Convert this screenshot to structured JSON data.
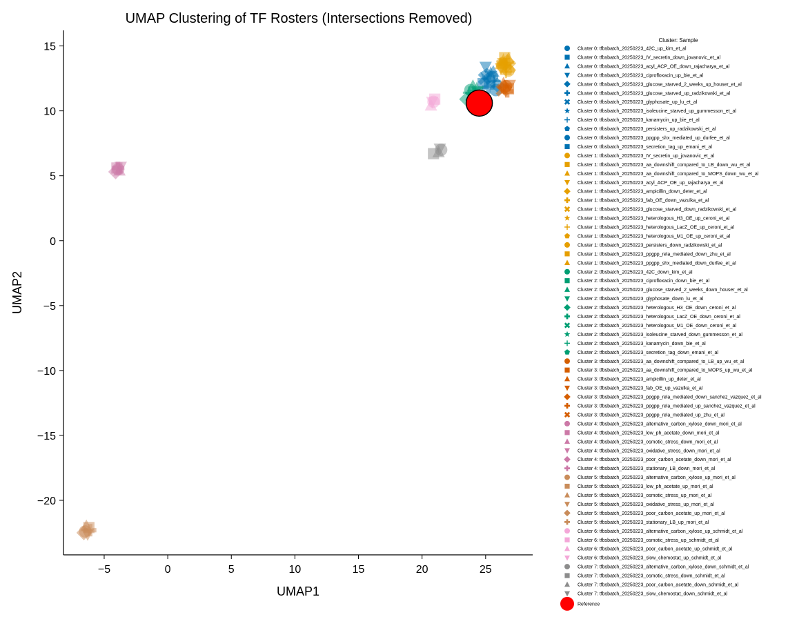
{
  "chart_data": {
    "type": "scatter",
    "title": "UMAP Clustering of TF Rosters (Intersections Removed)",
    "xlabel": "UMAP1",
    "ylabel": "UMAP2",
    "xlim": [
      -8.2,
      28.7
    ],
    "ylim": [
      -24.2,
      16.2
    ],
    "xticks": [
      -5,
      0,
      5,
      10,
      15,
      20,
      25
    ],
    "yticks": [
      15,
      10,
      5,
      0,
      -5,
      -10,
      -15,
      -20
    ],
    "xtick_labels": [
      "−5",
      "0",
      "5",
      "10",
      "15",
      "20",
      "25"
    ],
    "ytick_labels": [
      "15",
      "10",
      "5",
      "0",
      "−5",
      "−10",
      "−15",
      "−20"
    ],
    "grid": false,
    "legend_position": "right",
    "legend_title": "Cluster: Sample",
    "cluster_colors": [
      "#0072b2",
      "#e69f00",
      "#009e73",
      "#d55e00",
      "#cc79a7",
      "#c98c5a",
      "#f4a7d8",
      "#8c8c8c"
    ],
    "series": [
      {
        "label": "Cluster 0: tfbsbatch_20250223_42C_up_kim_et_al",
        "cluster": 0,
        "marker": "circle",
        "x": 25.5,
        "y": 12.6
      },
      {
        "label": "Cluster 0: tfbsbatch_20250223_IV_secretin_down_jovanovic_et_al",
        "cluster": 0,
        "marker": "square",
        "x": 25.3,
        "y": 12.2
      },
      {
        "label": "Cluster 0: tfbsbatch_20250223_acyl_ACP_OE_down_rajacharya_et_al",
        "cluster": 0,
        "marker": "triangle-up",
        "x": 25.6,
        "y": 13.0
      },
      {
        "label": "Cluster 0: tfbsbatch_20250223_ciprofloxacin_up_bie_et_al",
        "cluster": 0,
        "marker": "triangle-down",
        "x": 25.0,
        "y": 13.4
      },
      {
        "label": "Cluster 0: tfbsbatch_20250223_glucose_starved_2_weeks_up_houser_et_al",
        "cluster": 0,
        "marker": "diamond",
        "x": 25.9,
        "y": 12.0
      },
      {
        "label": "Cluster 0: tfbsbatch_20250223_glucose_starved_up_radzikowski_et_al",
        "cluster": 0,
        "marker": "plus",
        "x": 25.2,
        "y": 11.8
      },
      {
        "label": "Cluster 0: tfbsbatch_20250223_glyphosate_up_lu_et_al",
        "cluster": 0,
        "marker": "x",
        "x": 24.9,
        "y": 12.5
      },
      {
        "label": "Cluster 0: tfbsbatch_20250223_isoleucine_starved_up_gummesson_et_al",
        "cluster": 0,
        "marker": "star",
        "x": 25.4,
        "y": 12.9
      },
      {
        "label": "Cluster 0: tfbsbatch_20250223_kanamycin_up_bie_et_al",
        "cluster": 0,
        "marker": "thin-plus",
        "x": 25.7,
        "y": 12.3
      },
      {
        "label": "Cluster 0: tfbsbatch_20250223_persisters_up_radzikowski_et_al",
        "cluster": 0,
        "marker": "pentagon",
        "x": 25.1,
        "y": 12.8
      },
      {
        "label": "Cluster 0: tfbsbatch_20250223_ppgpp_shx_mediated_up_durfee_et_al",
        "cluster": 0,
        "marker": "circle",
        "x": 25.8,
        "y": 11.6
      },
      {
        "label": "Cluster 0: tfbsbatch_20250223_secretion_tag_up_emani_et_al",
        "cluster": 0,
        "marker": "square",
        "x": 24.8,
        "y": 12.1
      },
      {
        "label": "Cluster 1: tfbsbatch_20250223_IV_secretin_up_jovanovic_et_al",
        "cluster": 1,
        "marker": "circle",
        "x": 26.3,
        "y": 13.5
      },
      {
        "label": "Cluster 1: tfbsbatch_20250223_aa_downshift_compared_to_LB_down_wu_et_al",
        "cluster": 1,
        "marker": "square",
        "x": 26.6,
        "y": 13.2
      },
      {
        "label": "Cluster 1: tfbsbatch_20250223_aa_downshift_compared_to_MOPS_down_wu_et_al",
        "cluster": 1,
        "marker": "triangle-up",
        "x": 26.8,
        "y": 14.0
      },
      {
        "label": "Cluster 1: tfbsbatch_20250223_acyl_ACP_OE_up_rajacharya_et_al",
        "cluster": 1,
        "marker": "triangle-down",
        "x": 26.2,
        "y": 13.3
      },
      {
        "label": "Cluster 1: tfbsbatch_20250223_ampicillin_down_deter_et_al",
        "cluster": 1,
        "marker": "diamond",
        "x": 26.7,
        "y": 13.8
      },
      {
        "label": "Cluster 1: tfbsbatch_20250223_fab_OE_down_vazulka_et_al",
        "cluster": 1,
        "marker": "plus",
        "x": 26.5,
        "y": 13.6
      },
      {
        "label": "Cluster 1: tfbsbatch_20250223_glucose_starved_down_radzikowski_et_al",
        "cluster": 1,
        "marker": "x",
        "x": 26.9,
        "y": 13.4
      },
      {
        "label": "Cluster 1: tfbsbatch_20250223_heterologous_H3_OE_up_ceroni_et_al",
        "cluster": 1,
        "marker": "star",
        "x": 26.4,
        "y": 13.9
      },
      {
        "label": "Cluster 1: tfbsbatch_20250223_heterologous_LacZ_OE_up_ceroni_et_al",
        "cluster": 1,
        "marker": "thin-plus",
        "x": 26.6,
        "y": 13.0
      },
      {
        "label": "Cluster 1: tfbsbatch_20250223_heterologous_M1_OE_up_ceroni_et_al",
        "cluster": 1,
        "marker": "pentagon",
        "x": 26.3,
        "y": 13.7
      },
      {
        "label": "Cluster 1: tfbsbatch_20250223_persisters_down_radzikowski_et_al",
        "cluster": 1,
        "marker": "circle",
        "x": 26.8,
        "y": 13.1
      },
      {
        "label": "Cluster 1: tfbsbatch_20250223_ppgpp_rela_mediated_down_zhu_et_al",
        "cluster": 1,
        "marker": "square",
        "x": 26.5,
        "y": 14.1
      },
      {
        "label": "Cluster 1: tfbsbatch_20250223_ppgpp_shx_mediated_down_durfee_et_al",
        "cluster": 1,
        "marker": "triangle-up",
        "x": 26.2,
        "y": 13.6
      },
      {
        "label": "Cluster 2: tfbsbatch_20250223_42C_down_kim_et_al",
        "cluster": 2,
        "marker": "circle",
        "x": 23.8,
        "y": 11.6
      },
      {
        "label": "Cluster 2: tfbsbatch_20250223_ciprofloxacin_down_bie_et_al",
        "cluster": 2,
        "marker": "square",
        "x": 24.2,
        "y": 11.2
      },
      {
        "label": "Cluster 2: tfbsbatch_20250223_glucose_starved_2_weeks_down_houser_et_al",
        "cluster": 2,
        "marker": "triangle-up",
        "x": 24.0,
        "y": 11.9
      },
      {
        "label": "Cluster 2: tfbsbatch_20250223_glyphosate_down_lu_et_al",
        "cluster": 2,
        "marker": "triangle-down",
        "x": 24.4,
        "y": 11.5
      },
      {
        "label": "Cluster 2: tfbsbatch_20250223_heterologous_H3_OE_down_ceroni_et_al",
        "cluster": 2,
        "marker": "diamond",
        "x": 23.5,
        "y": 10.9
      },
      {
        "label": "Cluster 2: tfbsbatch_20250223_heterologous_LacZ_OE_down_ceroni_et_al",
        "cluster": 2,
        "marker": "plus",
        "x": 24.1,
        "y": 11.3
      },
      {
        "label": "Cluster 2: tfbsbatch_20250223_heterologous_M1_OE_down_ceroni_et_al",
        "cluster": 2,
        "marker": "x",
        "x": 23.9,
        "y": 11.1
      },
      {
        "label": "Cluster 2: tfbsbatch_20250223_isoleucine_starved_down_gummesson_et_al",
        "cluster": 2,
        "marker": "star",
        "x": 24.3,
        "y": 11.7
      },
      {
        "label": "Cluster 2: tfbsbatch_20250223_kanamycin_down_bie_et_al",
        "cluster": 2,
        "marker": "thin-plus",
        "x": 23.7,
        "y": 11.4
      },
      {
        "label": "Cluster 2: tfbsbatch_20250223_secretion_tag_down_emani_et_al",
        "cluster": 2,
        "marker": "pentagon",
        "x": 24.0,
        "y": 10.8
      },
      {
        "label": "Cluster 3: tfbsbatch_20250223_aa_downshift_compared_to_LB_up_wu_et_al",
        "cluster": 3,
        "marker": "circle",
        "x": 26.6,
        "y": 11.9
      },
      {
        "label": "Cluster 3: tfbsbatch_20250223_aa_downshift_compared_to_MOPS_up_wu_et_al",
        "cluster": 3,
        "marker": "square",
        "x": 26.8,
        "y": 11.7
      },
      {
        "label": "Cluster 3: tfbsbatch_20250223_ampicillin_up_deter_et_al",
        "cluster": 3,
        "marker": "triangle-up",
        "x": 26.4,
        "y": 12.1
      },
      {
        "label": "Cluster 3: tfbsbatch_20250223_fab_OE_up_vazulka_et_al",
        "cluster": 3,
        "marker": "triangle-down",
        "x": 26.9,
        "y": 12.0
      },
      {
        "label": "Cluster 3: tfbsbatch_20250223_ppgpp_rela_mediated_down_sanchez_vazquez_et_al",
        "cluster": 3,
        "marker": "diamond",
        "x": 26.5,
        "y": 11.8
      },
      {
        "label": "Cluster 3: tfbsbatch_20250223_ppgpp_rela_mediated_up_sanchez_vazquez_et_al",
        "cluster": 3,
        "marker": "plus",
        "x": 26.7,
        "y": 11.5
      },
      {
        "label": "Cluster 3: tfbsbatch_20250223_ppgpp_rela_mediated_up_zhu_et_al",
        "cluster": 3,
        "marker": "x",
        "x": 26.3,
        "y": 11.6
      },
      {
        "label": "Cluster 4: tfbsbatch_20250223_alternative_carbon_xylose_down_mori_et_al",
        "cluster": 4,
        "marker": "circle",
        "x": -3.9,
        "y": 5.5
      },
      {
        "label": "Cluster 4: tfbsbatch_20250223_low_ph_acetate_down_mori_et_al",
        "cluster": 4,
        "marker": "square",
        "x": -4.0,
        "y": 5.6
      },
      {
        "label": "Cluster 4: tfbsbatch_20250223_osmotic_stress_down_mori_et_al",
        "cluster": 4,
        "marker": "triangle-up",
        "x": -3.8,
        "y": 5.4
      },
      {
        "label": "Cluster 4: tfbsbatch_20250223_oxidative_stress_down_mori_et_al",
        "cluster": 4,
        "marker": "triangle-down",
        "x": -3.7,
        "y": 5.7
      },
      {
        "label": "Cluster 4: tfbsbatch_20250223_poor_carbon_acetate_down_mori_et_al",
        "cluster": 4,
        "marker": "diamond",
        "x": -4.1,
        "y": 5.3
      },
      {
        "label": "Cluster 4: tfbsbatch_20250223_stationary_LB_down_mori_et_al",
        "cluster": 4,
        "marker": "plus",
        "x": -3.9,
        "y": 5.6
      },
      {
        "label": "Cluster 5: tfbsbatch_20250223_alternative_carbon_xylose_up_mori_et_al",
        "cluster": 5,
        "marker": "circle",
        "x": -6.5,
        "y": -22.4
      },
      {
        "label": "Cluster 5: tfbsbatch_20250223_low_ph_acetate_up_mori_et_al",
        "cluster": 5,
        "marker": "square",
        "x": -6.2,
        "y": -22.1
      },
      {
        "label": "Cluster 5: tfbsbatch_20250223_osmotic_stress_up_mori_et_al",
        "cluster": 5,
        "marker": "triangle-up",
        "x": -6.4,
        "y": -22.0
      },
      {
        "label": "Cluster 5: tfbsbatch_20250223_oxidative_stress_up_mori_et_al",
        "cluster": 5,
        "marker": "triangle-down",
        "x": -6.3,
        "y": -22.6
      },
      {
        "label": "Cluster 5: tfbsbatch_20250223_poor_carbon_acetate_up_mori_et_al",
        "cluster": 5,
        "marker": "diamond",
        "x": -6.6,
        "y": -22.5
      },
      {
        "label": "Cluster 5: tfbsbatch_20250223_stationary_LB_up_mori_et_al",
        "cluster": 5,
        "marker": "plus",
        "x": -6.1,
        "y": -22.3
      },
      {
        "label": "Cluster 6: tfbsbatch_20250223_alternative_carbon_xylose_up_schmidt_et_al",
        "cluster": 6,
        "marker": "circle",
        "x": 20.9,
        "y": 10.7
      },
      {
        "label": "Cluster 6: tfbsbatch_20250223_osmotic_stress_up_schmidt_et_al",
        "cluster": 6,
        "marker": "square",
        "x": 21.0,
        "y": 10.9
      },
      {
        "label": "Cluster 6: tfbsbatch_20250223_poor_carbon_acetate_up_schmidt_et_al",
        "cluster": 6,
        "marker": "triangle-up",
        "x": 20.7,
        "y": 10.4
      },
      {
        "label": "Cluster 6: tfbsbatch_20250223_slow_chemostat_up_schmidt_et_al",
        "cluster": 6,
        "marker": "triangle-down",
        "x": 20.8,
        "y": 10.7
      },
      {
        "label": "Cluster 7: tfbsbatch_20250223_alternative_carbon_xylose_down_schmidt_et_al",
        "cluster": 7,
        "marker": "circle",
        "x": 21.5,
        "y": 7.0
      },
      {
        "label": "Cluster 7: tfbsbatch_20250223_osmotic_stress_down_schmidt_et_al",
        "cluster": 7,
        "marker": "square",
        "x": 20.9,
        "y": 6.7
      },
      {
        "label": "Cluster 7: tfbsbatch_20250223_poor_carbon_acetate_down_schmidt_et_al",
        "cluster": 7,
        "marker": "triangle-up",
        "x": 21.3,
        "y": 6.8
      },
      {
        "label": "Cluster 7: tfbsbatch_20250223_slow_chemostat_down_schmidt_et_al",
        "cluster": 7,
        "marker": "triangle-down",
        "x": 21.4,
        "y": 7.1
      }
    ],
    "reference": {
      "label": "Reference",
      "x": 24.5,
      "y": 10.6,
      "color": "#ff0000",
      "marker": "circle"
    }
  }
}
